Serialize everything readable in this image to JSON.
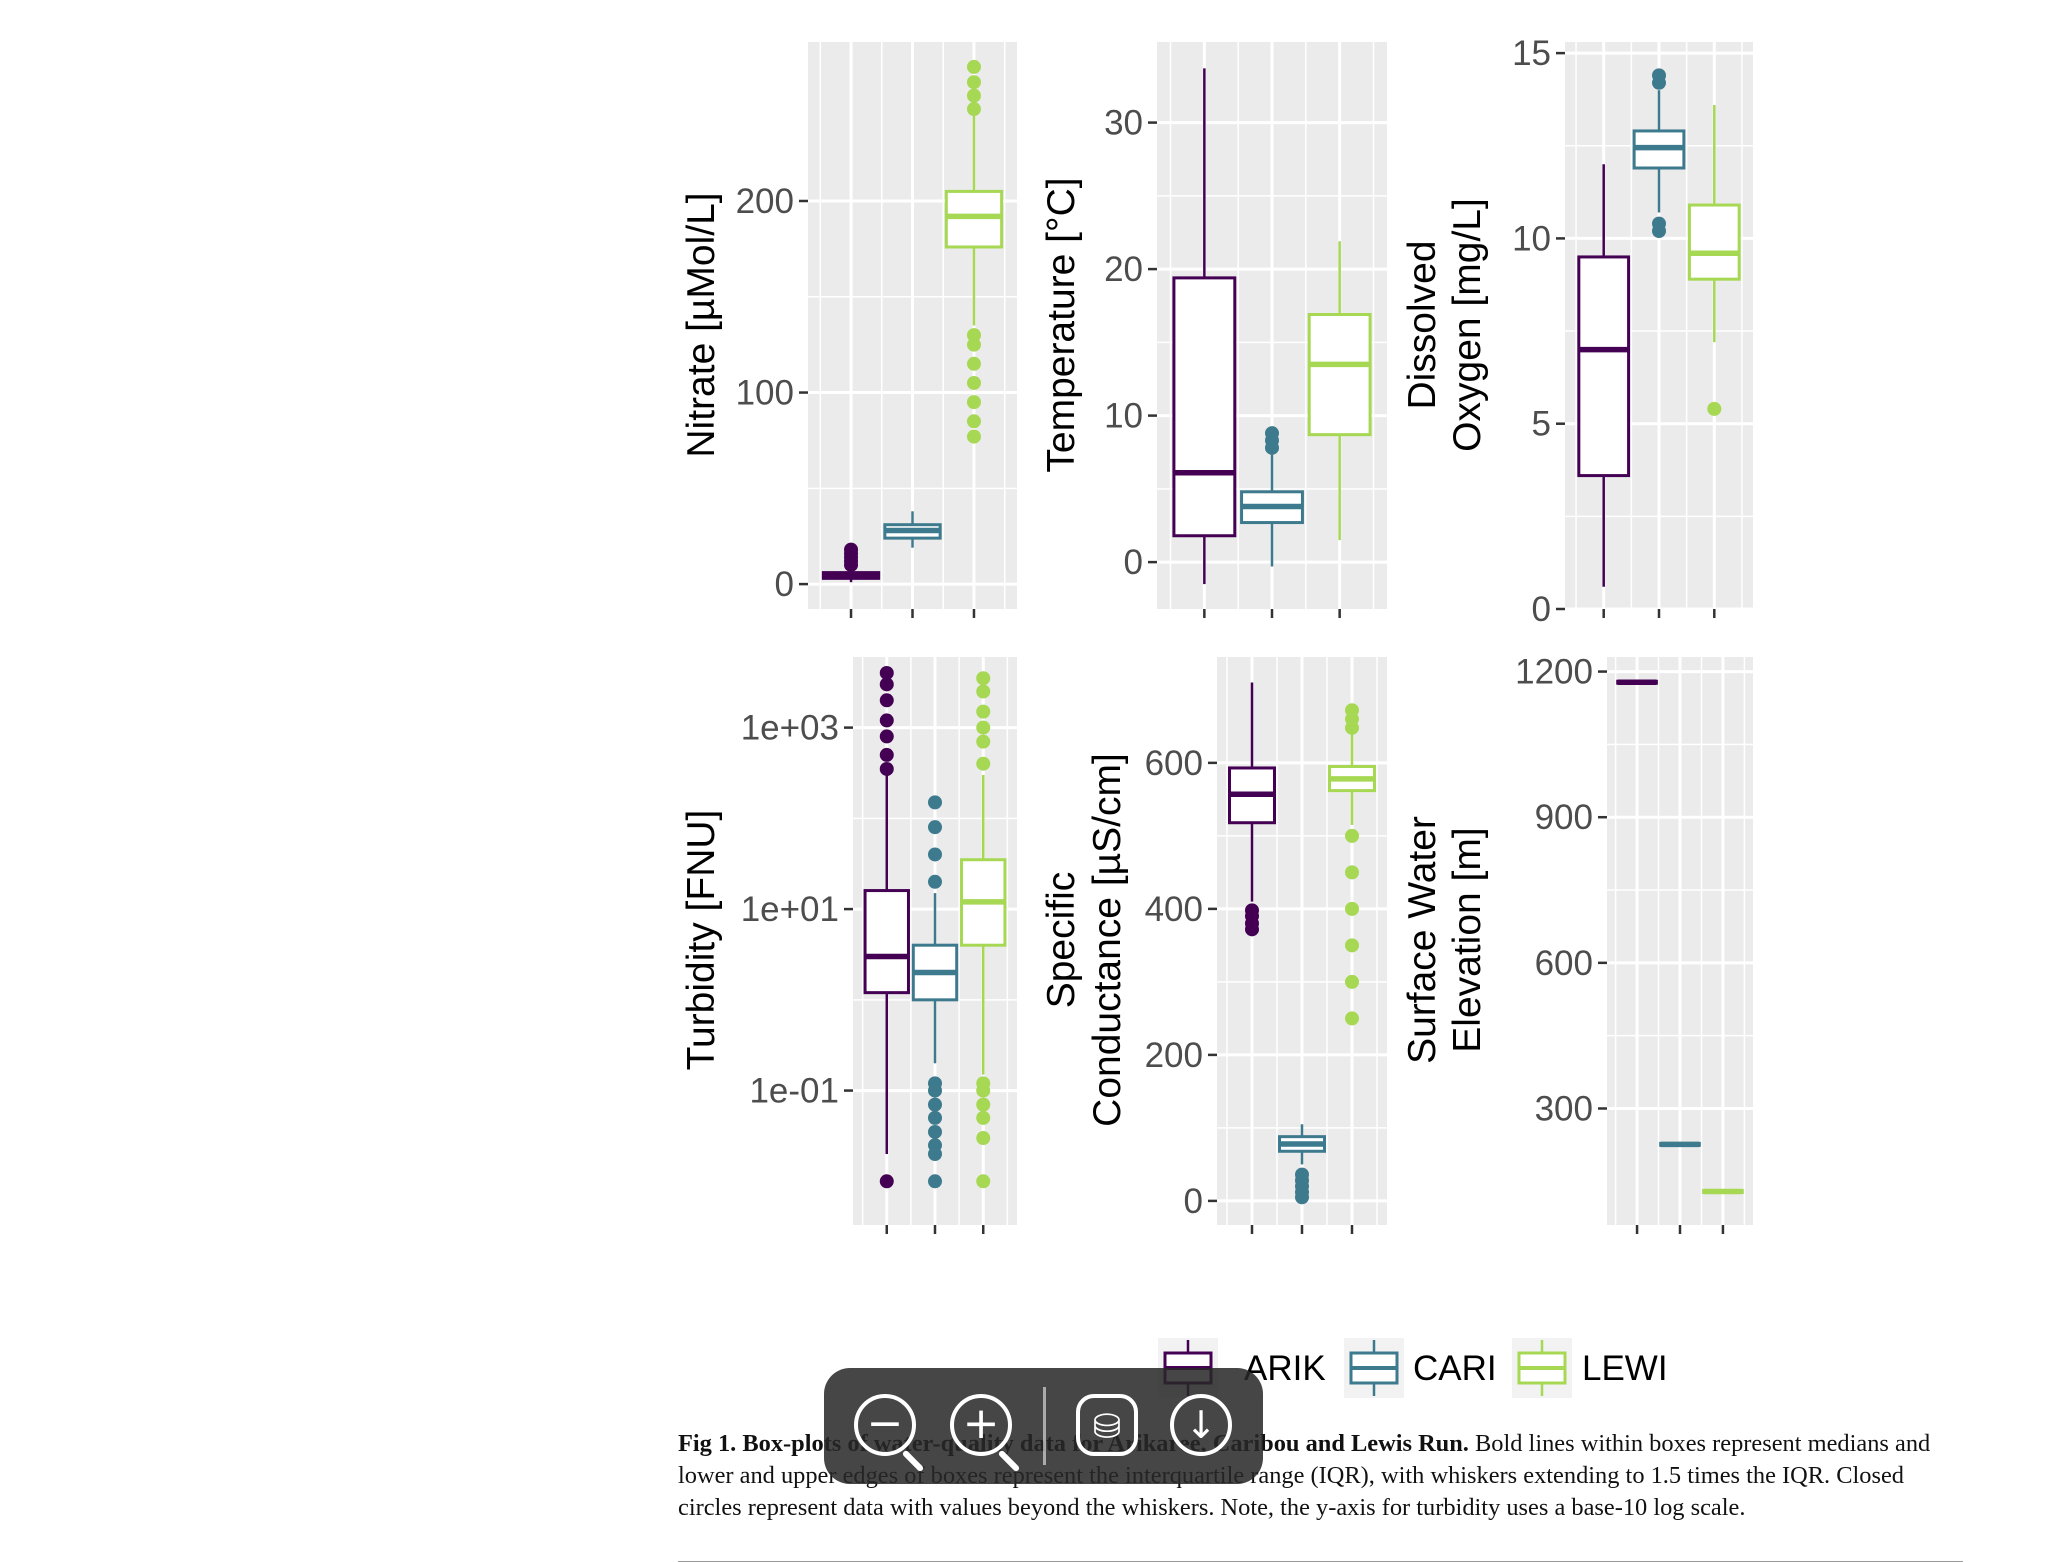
{
  "colors": {
    "ARIK": "#440154",
    "CARI": "#3e7a8d",
    "LEWI": "#a6d854",
    "panel_bg": "#ebebeb",
    "grid": "#ffffff"
  },
  "chart_data": [
    {
      "type": "box",
      "ylabel": "Nitrate [µMol/L]",
      "yticks": [
        0,
        100,
        200
      ],
      "ylim": [
        -13,
        283
      ],
      "boxes": [
        {
          "site": "ARIK",
          "lower": 1,
          "q1": 3,
          "median": 4.5,
          "q3": 6,
          "upper": 9,
          "outliers": [
            10,
            12,
            14,
            16,
            18
          ]
        },
        {
          "site": "CARI",
          "lower": 19,
          "q1": 24,
          "median": 28,
          "q3": 31,
          "upper": 38,
          "outliers": []
        },
        {
          "site": "LEWI",
          "lower": 135,
          "q1": 176,
          "median": 192,
          "q3": 205,
          "upper": 245,
          "outliers": [
            77,
            85,
            95,
            105,
            115,
            125,
            130,
            248,
            255,
            262,
            270
          ]
        }
      ]
    },
    {
      "type": "box",
      "ylabel": "Temperature [°C]",
      "yticks": [
        0,
        10,
        20,
        30
      ],
      "ylim": [
        -3.2,
        35.5
      ],
      "boxes": [
        {
          "site": "ARIK",
          "lower": -1.5,
          "q1": 1.8,
          "median": 6.1,
          "q3": 19.4,
          "upper": 33.7,
          "outliers": []
        },
        {
          "site": "CARI",
          "lower": -0.3,
          "q1": 2.7,
          "median": 3.8,
          "q3": 4.8,
          "upper": 7.4,
          "outliers": [
            7.8,
            8.3,
            8.8
          ]
        },
        {
          "site": "LEWI",
          "lower": 1.5,
          "q1": 8.7,
          "median": 13.5,
          "q3": 16.9,
          "upper": 21.9,
          "outliers": []
        }
      ]
    },
    {
      "type": "box",
      "ylabel": "Dissolved Oxygen [mg/L]",
      "ylabel_lines": [
        "Dissolved",
        "Oxygen [mg/L]"
      ],
      "yticks": [
        0,
        5,
        10,
        15
      ],
      "ylim": [
        0,
        15.3
      ],
      "boxes": [
        {
          "site": "ARIK",
          "lower": 0.6,
          "q1": 3.6,
          "median": 7.0,
          "q3": 9.5,
          "upper": 12.0,
          "outliers": []
        },
        {
          "site": "CARI",
          "lower": 10.7,
          "q1": 11.9,
          "median": 12.45,
          "q3": 12.9,
          "upper": 14.0,
          "outliers": [
            10.2,
            10.4,
            14.2,
            14.4
          ]
        },
        {
          "site": "LEWI",
          "lower": 7.2,
          "q1": 8.9,
          "median": 9.6,
          "q3": 10.9,
          "upper": 13.6,
          "outliers": [
            5.4
          ]
        }
      ]
    },
    {
      "type": "box",
      "ylabel": "Turbidity [FNU]",
      "yscale": "log10",
      "yticks": [
        0.1,
        10,
        1000
      ],
      "yticklabels": [
        "1e-01",
        "1e+01",
        "1e+03"
      ],
      "ylim": [
        0.0033,
        6000
      ],
      "boxes": [
        {
          "site": "ARIK",
          "lower": 0.02,
          "q1": 1.2,
          "median": 3.0,
          "q3": 16,
          "upper": 300,
          "outliers": [
            0.01,
            350,
            500,
            800,
            1200,
            2000,
            3000,
            4000
          ]
        },
        {
          "site": "CARI",
          "lower": 0.2,
          "q1": 1.0,
          "median": 2.0,
          "q3": 4.0,
          "upper": 15,
          "outliers": [
            0.01,
            0.02,
            0.025,
            0.035,
            0.05,
            0.07,
            0.1,
            0.12,
            20,
            40,
            80,
            150
          ]
        },
        {
          "site": "LEWI",
          "lower": 0.15,
          "q1": 4.0,
          "median": 12,
          "q3": 35,
          "upper": 300,
          "outliers": [
            0.01,
            0.03,
            0.05,
            0.07,
            0.1,
            0.12,
            400,
            700,
            1000,
            1500,
            2500,
            3500
          ]
        }
      ]
    },
    {
      "type": "box",
      "ylabel": "Specific Conductance [µS/cm]",
      "ylabel_lines": [
        "Specific",
        "Conductance [µS/cm]"
      ],
      "yticks": [
        0,
        200,
        400,
        600
      ],
      "ylim": [
        -33,
        745
      ],
      "boxes": [
        {
          "site": "ARIK",
          "lower": 410,
          "q1": 518,
          "median": 557,
          "q3": 593,
          "upper": 710,
          "outliers": [
            372,
            380,
            390,
            398
          ]
        },
        {
          "site": "CARI",
          "lower": 50,
          "q1": 68,
          "median": 78,
          "q3": 88,
          "upper": 105,
          "outliers": [
            5,
            12,
            20,
            28,
            36
          ]
        },
        {
          "site": "LEWI",
          "lower": 515,
          "q1": 562,
          "median": 578,
          "q3": 595,
          "upper": 640,
          "outliers": [
            250,
            300,
            350,
            400,
            450,
            500,
            648,
            660,
            672
          ]
        }
      ]
    },
    {
      "type": "box",
      "ylabel": "Surface Water Elevation [m]",
      "ylabel_lines": [
        "Surface Water",
        "Elevation [m]"
      ],
      "yticks": [
        300,
        600,
        900,
        1200
      ],
      "ylim": [
        60,
        1230
      ],
      "boxes": [
        {
          "site": "ARIK",
          "lower": 1174,
          "q1": 1176,
          "median": 1178,
          "q3": 1180,
          "upper": 1182,
          "outliers": []
        },
        {
          "site": "CARI",
          "lower": 222,
          "q1": 224,
          "median": 226,
          "q3": 228,
          "upper": 230,
          "outliers": []
        },
        {
          "site": "LEWI",
          "lower": 126,
          "q1": 127,
          "median": 129,
          "q3": 131,
          "upper": 132,
          "outliers": []
        }
      ]
    }
  ],
  "legend": {
    "items": [
      "ARIK",
      "CARI",
      "LEWI"
    ]
  },
  "caption": {
    "title": "Fig 1. Box-plots of water-quality data for Arikaree, Caribou and Lewis Run.",
    "text": " Bold lines within boxes represent medians and lower and upper edges of boxes represent the interquartile range (IQR), with whiskers extending to 1.5 times the IQR. Closed circles represent data with values beyond the whiskers. Note, the y-axis for turbidity uses a base-10 log scale."
  },
  "toolbar": {
    "zoom_out": "−",
    "zoom_in": "+",
    "save": "⛁",
    "download": "↓"
  }
}
